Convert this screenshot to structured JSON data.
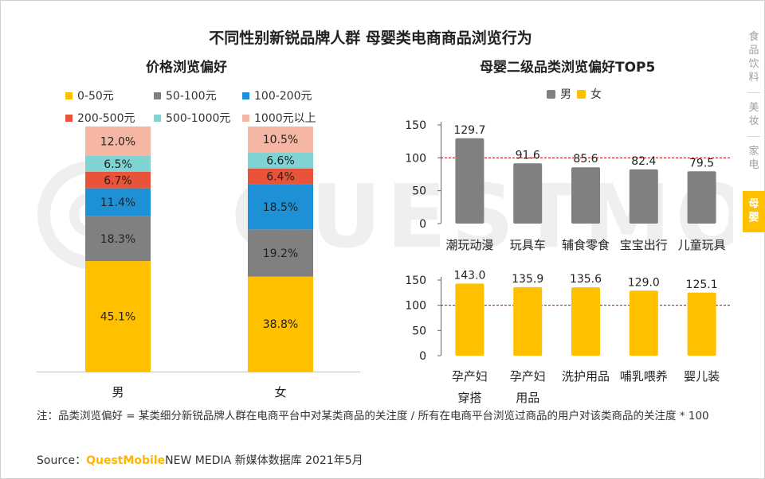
{
  "main_title": "不同性别新锐品牌人群 母婴类电商商品浏览行为",
  "left_title": "价格浏览偏好",
  "right_title": "母婴二级品类浏览偏好TOP5",
  "watermark_text": "QUESTMOBILE",
  "colors": {
    "c1": "#ffc000",
    "c2": "#808080",
    "c3": "#1e90d6",
    "c4": "#e8533a",
    "c5": "#7fd3d3",
    "c6": "#f6b6a4",
    "male": "#808080",
    "female": "#ffc000",
    "ref": "#c00000"
  },
  "nav": [
    {
      "chars": [
        "食",
        "品",
        "饮",
        "料"
      ],
      "active": false
    },
    {
      "chars": [
        "美",
        "妆"
      ],
      "active": false
    },
    {
      "chars": [
        "家",
        "电"
      ],
      "active": false
    },
    {
      "chars": [
        "母",
        "婴"
      ],
      "active": true
    }
  ],
  "note": "注：品类浏览偏好 = 某类细分新锐品牌人群在电商平台中对某类商品的关注度 / 所有在电商平台浏览过商品的用户对该类商品的关注度 * 100",
  "source": {
    "label": "Source：",
    "brand": "QuestMobile",
    "text": "NEW MEDIA 新媒体数据库 2021年5月"
  },
  "chart_data": [
    {
      "type": "bar",
      "stacked": true,
      "normalized": true,
      "title": "价格浏览偏好",
      "categories": [
        "男",
        "女"
      ],
      "series": [
        {
          "name": "0-50元",
          "color_key": "c1",
          "values": [
            45.1,
            38.8
          ],
          "labels": [
            "45.1%",
            "38.8%"
          ]
        },
        {
          "name": "50-100元",
          "color_key": "c2",
          "values": [
            18.3,
            19.2
          ],
          "labels": [
            "18.3%",
            "19.2%"
          ]
        },
        {
          "name": "100-200元",
          "color_key": "c3",
          "values": [
            11.4,
            18.5
          ],
          "labels": [
            "11.4%",
            "18.5%"
          ]
        },
        {
          "name": "200-500元",
          "color_key": "c4",
          "values": [
            6.7,
            6.4
          ],
          "labels": [
            "6.7%",
            "6.4%"
          ]
        },
        {
          "name": "500-1000元",
          "color_key": "c5",
          "values": [
            6.5,
            6.6
          ],
          "labels": [
            "6.5%",
            "6.6%"
          ]
        },
        {
          "name": "1000元以上",
          "color_key": "c6",
          "values": [
            12.0,
            10.5
          ],
          "labels": [
            "12.0%",
            "10.5%"
          ]
        }
      ],
      "legend": "top"
    },
    {
      "type": "bar",
      "title": "母婴二级品类浏览偏好TOP5",
      "series_name": "男",
      "color_key": "male",
      "categories": [
        "潮玩动漫",
        "玩具车",
        "辅食零食",
        "宝宝出行",
        "儿童玩具"
      ],
      "values": [
        129.7,
        91.6,
        85.6,
        82.4,
        79.5
      ],
      "labels": [
        "129.7",
        "91.6",
        "85.6",
        "82.4",
        "79.5"
      ],
      "ylim": [
        0,
        150
      ],
      "yticks": [
        0,
        50,
        100,
        150
      ],
      "ytick_labels": [
        "0",
        "50",
        "100",
        "150"
      ],
      "reference_line": 100
    },
    {
      "type": "bar",
      "series_name": "女",
      "color_key": "female",
      "categories": [
        [
          "孕产妇",
          "穿搭"
        ],
        [
          "孕产妇",
          "用品"
        ],
        [
          "洗护用品"
        ],
        [
          "哺乳喂养"
        ],
        [
          "婴儿装"
        ]
      ],
      "values": [
        143.0,
        135.9,
        135.6,
        129.0,
        125.1
      ],
      "labels": [
        "143.0",
        "135.9",
        "135.6",
        "129.0",
        "125.1"
      ],
      "ylim": [
        0,
        150
      ],
      "yticks": [
        0,
        50,
        100,
        150
      ],
      "ytick_labels": [
        "0",
        "50",
        "100",
        "150"
      ],
      "reference_line": 100
    }
  ],
  "right_legend": [
    {
      "label": "男",
      "color_key": "male"
    },
    {
      "label": "女",
      "color_key": "female"
    }
  ]
}
